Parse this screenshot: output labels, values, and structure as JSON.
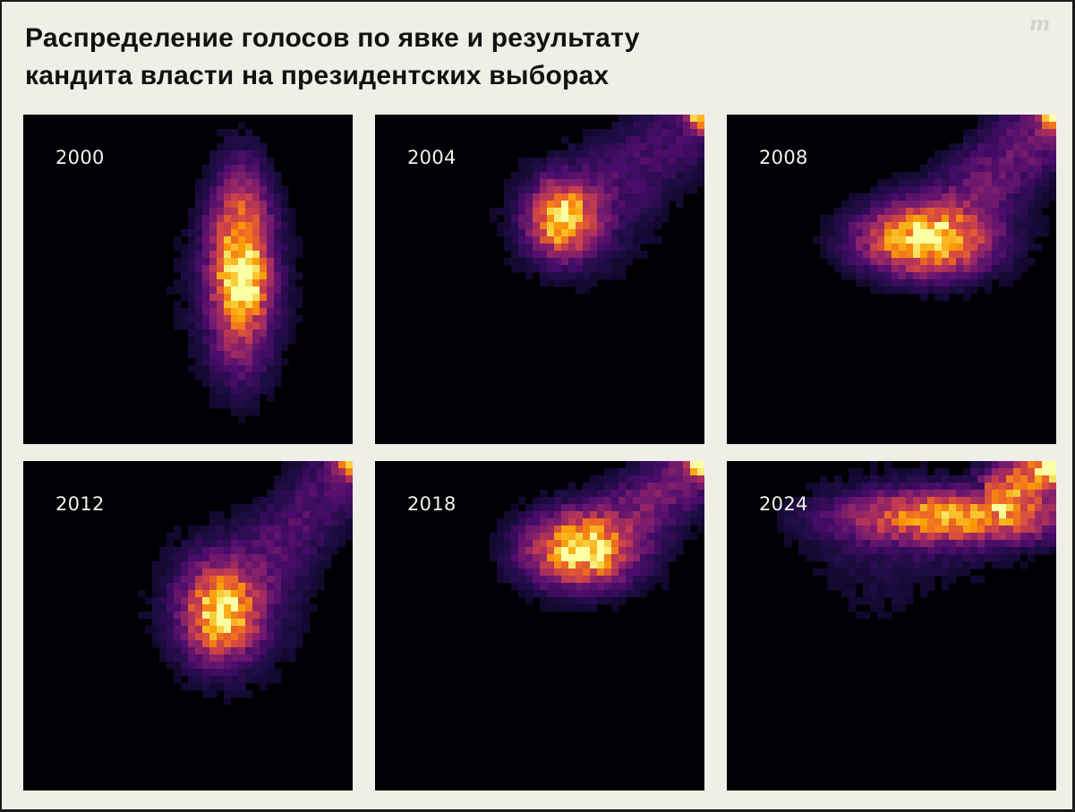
{
  "header": {
    "title_line1": "Распределение голосов по явке и результату",
    "title_line2": "кандита власти на президентских выборах",
    "logo": "m"
  },
  "colors": {
    "background": "#efefe8",
    "panel_background": "#000004",
    "colormap": [
      "#000004",
      "#1b0c41",
      "#4a0c6b",
      "#781c6d",
      "#a52c60",
      "#cf4446",
      "#ed6925",
      "#fb9b06",
      "#f7d13d",
      "#fcffa4"
    ]
  },
  "chart_data": [
    {
      "type": "heatmap",
      "label": "2000",
      "clusters": [
        {
          "x": 0.66,
          "y": 0.46,
          "sx": 0.055,
          "sy": 0.16,
          "w": 1.0
        },
        {
          "x": 0.67,
          "y": 0.51,
          "sx": 0.04,
          "sy": 0.05,
          "w": 0.45
        },
        {
          "x": 0.65,
          "y": 0.53,
          "sx": 0.14,
          "sy": 0.22,
          "w": 0.08
        }
      ],
      "tail": null
    },
    {
      "type": "heatmap",
      "label": "2004",
      "clusters": [
        {
          "x": 0.57,
          "y": 0.32,
          "sx": 0.06,
          "sy": 0.065,
          "w": 1.0
        },
        {
          "x": 0.6,
          "y": 0.32,
          "sx": 0.16,
          "sy": 0.14,
          "w": 0.09
        }
      ],
      "tail": {
        "from": [
          0.57,
          0.32
        ],
        "to": [
          0.99,
          0.01
        ],
        "width": 0.09,
        "w": 0.16
      },
      "corner": {
        "x": 0.99,
        "y": 0.01,
        "w": 1.0
      }
    },
    {
      "type": "heatmap",
      "label": "2008",
      "clusters": [
        {
          "x": 0.6,
          "y": 0.38,
          "sx": 0.11,
          "sy": 0.06,
          "w": 1.0
        },
        {
          "x": 0.63,
          "y": 0.37,
          "sx": 0.2,
          "sy": 0.11,
          "w": 0.1
        }
      ],
      "tail": {
        "from": [
          0.6,
          0.38
        ],
        "to": [
          0.99,
          0.01
        ],
        "width": 0.08,
        "w": 0.26
      },
      "corner": {
        "x": 0.99,
        "y": 0.01,
        "w": 0.8
      }
    },
    {
      "type": "heatmap",
      "label": "2012",
      "clusters": [
        {
          "x": 0.6,
          "y": 0.46,
          "sx": 0.065,
          "sy": 0.08,
          "w": 1.0
        },
        {
          "x": 0.62,
          "y": 0.44,
          "sx": 0.15,
          "sy": 0.16,
          "w": 0.13
        }
      ],
      "tail": {
        "from": [
          0.6,
          0.46
        ],
        "to": [
          0.99,
          0.01
        ],
        "width": 0.08,
        "w": 0.18
      },
      "corner": {
        "x": 0.99,
        "y": 0.01,
        "w": 0.9
      }
    },
    {
      "type": "heatmap",
      "label": "2018",
      "clusters": [
        {
          "x": 0.62,
          "y": 0.27,
          "sx": 0.09,
          "sy": 0.06,
          "w": 1.0
        },
        {
          "x": 0.64,
          "y": 0.27,
          "sx": 0.17,
          "sy": 0.11,
          "w": 0.11
        }
      ],
      "tail": {
        "from": [
          0.62,
          0.27
        ],
        "to": [
          0.99,
          0.01
        ],
        "width": 0.07,
        "w": 0.28
      },
      "corner": {
        "x": 0.99,
        "y": 0.01,
        "w": 1.0
      }
    },
    {
      "type": "heatmap",
      "label": "2024",
      "clusters": [
        {
          "x": 0.7,
          "y": 0.17,
          "sx": 0.2,
          "sy": 0.045,
          "w": 0.85
        },
        {
          "x": 0.6,
          "y": 0.2,
          "sx": 0.26,
          "sy": 0.12,
          "w": 0.09
        },
        {
          "x": 0.45,
          "y": 0.35,
          "sx": 0.12,
          "sy": 0.2,
          "w": 0.03
        }
      ],
      "tail": {
        "from": [
          0.8,
          0.12
        ],
        "to": [
          0.99,
          0.01
        ],
        "width": 0.05,
        "w": 0.85
      },
      "corner": {
        "x": 0.99,
        "y": 0.01,
        "w": 1.0
      }
    }
  ]
}
